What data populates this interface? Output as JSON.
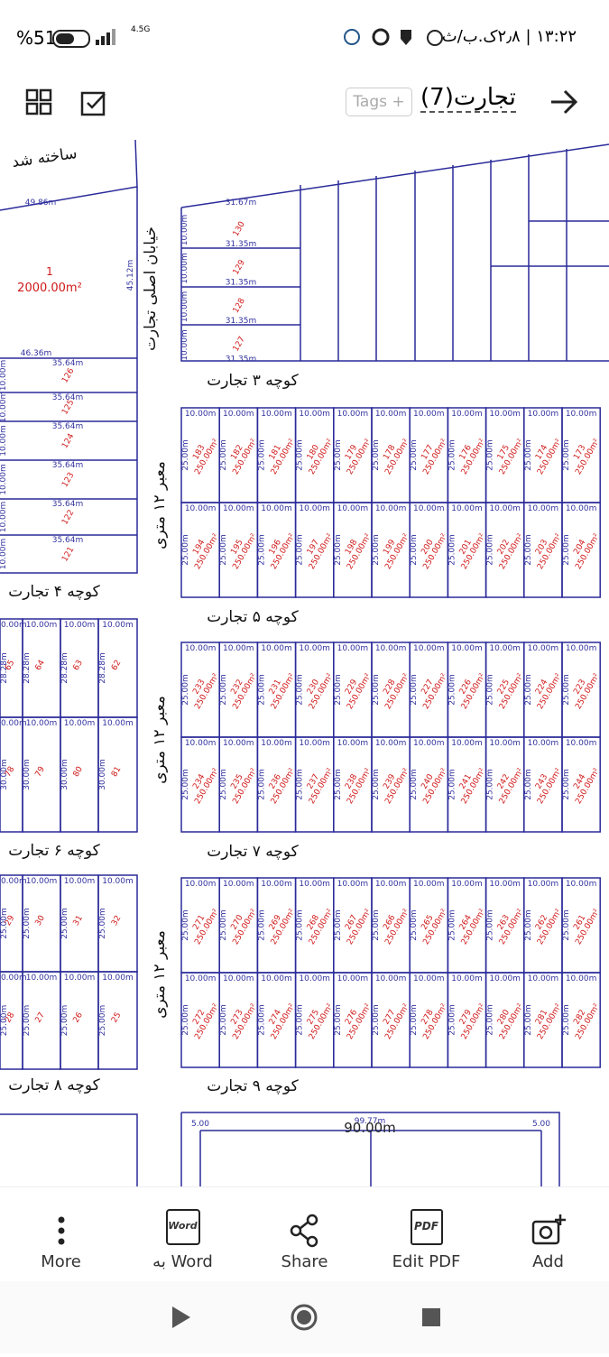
{
  "status_bar": {
    "battery": "%51",
    "network": "4.5G",
    "clock": "۱۳:۲۲ | ۲٫۸ک.ب/ث"
  },
  "header": {
    "title": "تجارت(7)",
    "tags": "Tags"
  },
  "map": {
    "built_label": "ساخته شد",
    "main_street": "خیابان اصلی تجارت",
    "streets": [
      "کوچه ۳ تجارت",
      "کوچه ۴ تجارت",
      "کوچه ۵ تجارت",
      "کوچه ۶ تجارت",
      "کوچه ۷ تجارت",
      "کوچه ۸ تجارت",
      "کوچه ۹ تجارت"
    ],
    "passage": "معبر ۱۲ متری",
    "big_lot": {
      "number": "1",
      "area": "2000.00m²",
      "top": "49.86m",
      "side": "45.12m"
    },
    "top_block": {
      "top": "31.67m",
      "width": "31.35m",
      "lots": [
        "130",
        "129",
        "128",
        "127"
      ],
      "height": "10.00m"
    },
    "left_top_block": {
      "top": "46.36m",
      "width": "35.64m",
      "lots": [
        "126",
        "125",
        "124",
        "123",
        "122",
        "121"
      ],
      "height": "10.00m"
    },
    "labels": {
      "width": "10.00m",
      "height": "25.00m",
      "area": "250.00m²"
    },
    "grid_blocks": [
      {
        "rows": [
          [
            "183",
            "182",
            "181",
            "180",
            "179",
            "178",
            "177",
            "176",
            "175",
            "174",
            "173"
          ],
          [
            "194",
            "195",
            "196",
            "197",
            "198",
            "199",
            "200",
            "201",
            "202",
            "203",
            "204"
          ]
        ]
      },
      {
        "rows": [
          [
            "233",
            "232",
            "231",
            "230",
            "229",
            "228",
            "227",
            "226",
            "225",
            "224",
            "223"
          ],
          [
            "234",
            "235",
            "236",
            "237",
            "238",
            "239",
            "240",
            "241",
            "242",
            "243",
            "244"
          ]
        ]
      },
      {
        "rows": [
          [
            "271",
            "270",
            "269",
            "268",
            "267",
            "266",
            "265",
            "264",
            "263",
            "262",
            "261"
          ],
          [
            "272",
            "273",
            "274",
            "275",
            "276",
            "277",
            "278",
            "279",
            "280",
            "281",
            "282"
          ]
        ]
      }
    ],
    "left_blocks": [
      {
        "heights": [
          "28.28m",
          "30.00m"
        ],
        "rows": [
          [
            "65",
            "64",
            "63",
            "62"
          ],
          [
            "78",
            "79",
            "80",
            "81"
          ]
        ]
      },
      {
        "heights": [
          "25.00m",
          "25.00m"
        ],
        "rows": [
          [
            "29",
            "30",
            "31",
            "32"
          ],
          [
            "28",
            "27",
            "26",
            "25"
          ]
        ]
      }
    ],
    "bottom_block": {
      "total": "90.00m",
      "top": "99.77m",
      "setback": "5.00"
    }
  },
  "toolbar": [
    {
      "label": "More"
    },
    {
      "label": "Word به",
      "icon_text": "Word"
    },
    {
      "label": "Share"
    },
    {
      "label": "Edit PDF",
      "icon_text": "PDF"
    },
    {
      "label": "Add"
    }
  ]
}
